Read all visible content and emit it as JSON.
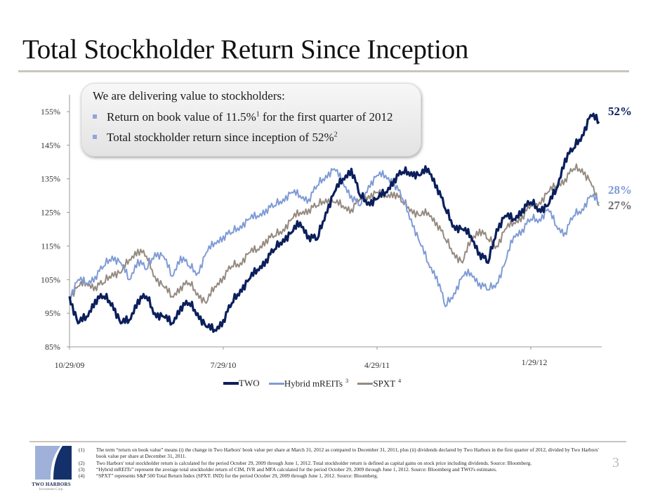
{
  "slide": {
    "title": "Total Stockholder Return Since Inception",
    "page_number": "3",
    "logo": {
      "name": "TWO HARBORS",
      "subtitle": "Investment Corp."
    }
  },
  "callout": {
    "heading": "We are delivering value to stockholders:",
    "bullets": [
      {
        "text": "Return on book value of 11.5%",
        "sup": "1",
        "tail": " for the first quarter of 2012"
      },
      {
        "text": "Total stockholder return since inception of 52%",
        "sup": "2",
        "tail": ""
      }
    ]
  },
  "end_labels": [
    {
      "text": "52%",
      "series": "TWO",
      "color": "#0b1f5c"
    },
    {
      "text": "28%",
      "series": "Hybrid mREITs",
      "color": "#7f9bd6"
    },
    {
      "text": "27%",
      "series": "SPXT",
      "color": "#6e6e6e"
    }
  ],
  "legend": [
    {
      "label": "TWO",
      "sup": "",
      "color": "#0b1f5c"
    },
    {
      "label": "Hybrid mREITs",
      "sup": "3",
      "color": "#7f9bd6"
    },
    {
      "label": "SPXT",
      "sup": "4",
      "color": "#958a80"
    }
  ],
  "footnotes": [
    {
      "num": "(1)",
      "text": "The term “return on book value” means (i) the change in Two Harbors' book value per share at March 31, 2012 as compared to December 31, 2011, plus (ii) dividends declared by Two Harbors in the first quarter of 2012, divided by Two Harbors' book value per share at December 31, 2011."
    },
    {
      "num": "(2)",
      "text": "Two Harbors' total stockholder return is calculated for the period October 29, 2009 through June 1, 2012. Total stockholder return is defined as capital gains on stock price including dividends. Source: Bloomberg."
    },
    {
      "num": "(3)",
      "text": "“Hybrid mREITs” represent the average total stockholder return of CIM, IVR and MFA calculated for the period October 29, 2009 through June 1, 2012. Source: Bloomberg and TWO's estimates."
    },
    {
      "num": "(4)",
      "text": "“SPXT” represents S&P 500 Total Return Index (SPXT: IND) for the period October 29, 2009 through June 1, 2012. Source: Bloomberg."
    }
  ],
  "chart_data": {
    "type": "line",
    "title": "Total Stockholder Return Since Inception",
    "xlabel": "",
    "ylabel": "",
    "ylim": [
      85,
      160
    ],
    "yticks": [
      85,
      95,
      105,
      115,
      125,
      135,
      145,
      155
    ],
    "ytick_labels": [
      "85%",
      "95%",
      "105%",
      "115%",
      "125%",
      "135%",
      "145%",
      "155%"
    ],
    "xlim_months": [
      0,
      31.1
    ],
    "xticks_months": [
      0,
      9,
      18,
      27
    ],
    "xtick_labels": [
      "10/29/09",
      "7/29/10",
      "4/29/11",
      "1/29/12"
    ],
    "grid": false,
    "legend_position": "bottom",
    "x_months": [
      0,
      0.5,
      1,
      1.5,
      2,
      2.5,
      3,
      3.5,
      4,
      4.5,
      5,
      5.5,
      6,
      6.5,
      7,
      7.5,
      8,
      8.5,
      9,
      9.5,
      10,
      10.5,
      11,
      11.5,
      12,
      12.5,
      13,
      13.5,
      14,
      14.5,
      15,
      15.5,
      16,
      16.5,
      17,
      17.5,
      18,
      18.5,
      19,
      19.5,
      20,
      20.5,
      21,
      21.5,
      22,
      22.5,
      23,
      23.5,
      24,
      24.5,
      25,
      25.5,
      26,
      26.5,
      27,
      27.5,
      28,
      28.5,
      29,
      29.5,
      30,
      30.5,
      31
    ],
    "series": [
      {
        "name": "TWO",
        "color": "#0b1f5c",
        "values": [
          100,
          92,
          94,
          99,
          100,
          98,
          92,
          93,
          99,
          100,
          95,
          94,
          92,
          97,
          98,
          95,
          91,
          90,
          93,
          98,
          102,
          105,
          108,
          111,
          114,
          117,
          119,
          122,
          118,
          117,
          125,
          131,
          135,
          138,
          130,
          128,
          129,
          131,
          135,
          137,
          137,
          136,
          138,
          133,
          126,
          121,
          120,
          118,
          113,
          110,
          120,
          124,
          123,
          126,
          128,
          126,
          127,
          132,
          141,
          144,
          148,
          154,
          152
        ]
      },
      {
        "name": "Hybrid mREITs",
        "color": "#7f9bd6",
        "values": [
          100,
          105,
          104,
          106,
          109,
          112,
          110,
          105,
          111,
          108,
          113,
          112,
          106,
          112,
          109,
          107,
          113,
          116,
          118,
          119,
          121,
          123,
          124,
          126,
          127,
          129,
          131,
          130,
          129,
          133,
          136,
          138,
          134,
          130,
          127,
          133,
          136,
          136,
          134,
          129,
          123,
          116,
          110,
          106,
          97,
          101,
          106,
          107,
          104,
          102,
          104,
          110,
          118,
          120,
          123,
          123,
          126,
          121,
          119,
          124,
          126,
          130,
          128
        ]
      },
      {
        "name": "SPXT",
        "color": "#958a80",
        "values": [
          100,
          103,
          104,
          103,
          104,
          107,
          107,
          111,
          114,
          112,
          106,
          103,
          100,
          103,
          104,
          101,
          98,
          103,
          106,
          109,
          110,
          113,
          114,
          117,
          118,
          120,
          123,
          125,
          126,
          127,
          129,
          128,
          127,
          126,
          129,
          130,
          131,
          130,
          131,
          128,
          126,
          124,
          125,
          122,
          117,
          113,
          110,
          117,
          120,
          117,
          115,
          120,
          122,
          124,
          127,
          128,
          131,
          133,
          135,
          138,
          138,
          134,
          127
        ]
      }
    ]
  }
}
